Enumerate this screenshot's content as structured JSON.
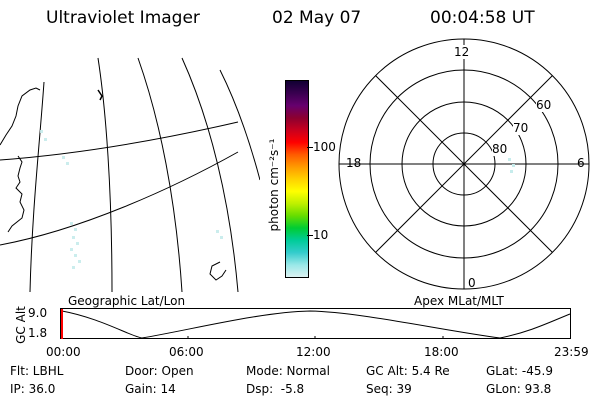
{
  "header": {
    "instrument": "Ultraviolet Imager",
    "date": "02 May 07",
    "time": "00:04:58 UT"
  },
  "geo_panel": {
    "label": "Geographic Lat/Lon"
  },
  "colorbar": {
    "unit_label": "photon cm⁻²s⁻¹",
    "ticks": [
      "100",
      "10"
    ],
    "colors": [
      "#110033",
      "#3a0050",
      "#66006e",
      "#8c0030",
      "#c8001e",
      "#ff0000",
      "#ff5a00",
      "#ff9a00",
      "#ffd000",
      "#ffff00",
      "#bff000",
      "#66dd00",
      "#00cc33",
      "#00cc99",
      "#33cccc",
      "#99e8e8",
      "#dcf2f2"
    ]
  },
  "polar_panel": {
    "label": "Apex MLat/MLT",
    "mlt_labels": {
      "top": "12",
      "left": "18",
      "right": "6",
      "bottom": "0"
    },
    "lat_labels": [
      "60",
      "70",
      "80"
    ]
  },
  "altitude_plot": {
    "axis_label": "GC Alt",
    "y_ticks": [
      "9.0",
      "1.8"
    ],
    "x_ticks": [
      "00:00",
      "06:00",
      "12:00",
      "18:00",
      "23:59"
    ]
  },
  "status": {
    "flt": "Flt: LBHL",
    "door": "Door: Open",
    "mode": "Mode: Normal",
    "gc_alt": "GC Alt: 5.4 Re",
    "glat": "GLat: -45.9",
    "ip": "IP: 36.0",
    "gain": "Gain: 14",
    "dsp": "Dsp:  -5.8",
    "seq": "Seq: 39",
    "glon": "GLon: 93.8"
  }
}
